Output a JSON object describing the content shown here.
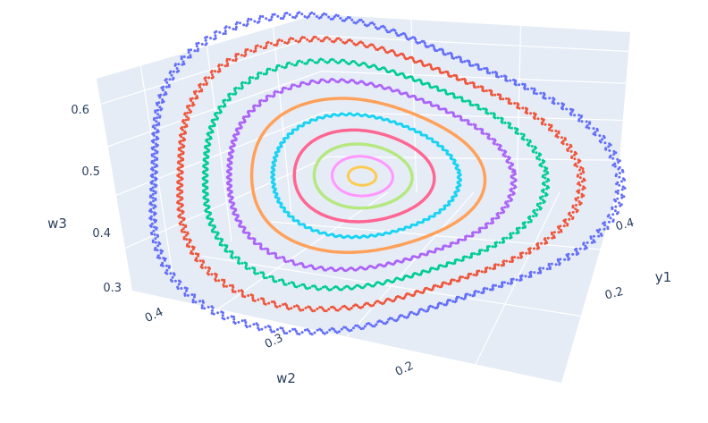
{
  "chart_data": {
    "type": "scatter",
    "scene": "3d",
    "axes": {
      "x": {
        "title": "w2",
        "ticks": [
          "0.4",
          "0.3",
          "0.2"
        ]
      },
      "y": {
        "title": "y1",
        "ticks": [
          "0.4",
          "0.2"
        ]
      },
      "z": {
        "title": "w3",
        "ticks": [
          "0.6",
          "0.5",
          "0.4",
          "0.3"
        ],
        "range": [
          0.28,
          0.64
        ]
      }
    },
    "grid": true,
    "legend": "none",
    "series": [
      {
        "color": "#636efa",
        "level": 1.0,
        "marker": "dots"
      },
      {
        "color": "#ef553b",
        "level": 0.86,
        "marker": "dots"
      },
      {
        "color": "#00cc96",
        "level": 0.73,
        "marker": "dots"
      },
      {
        "color": "#ab63fa",
        "level": 0.61,
        "marker": "dots"
      },
      {
        "color": "#ffa15a",
        "level": 0.5,
        "marker": "line"
      },
      {
        "color": "#19d3f3",
        "level": 0.4,
        "marker": "dots"
      },
      {
        "color": "#ff6692",
        "level": 0.3,
        "marker": "line"
      },
      {
        "color": "#b6e880",
        "level": 0.21,
        "marker": "line"
      },
      {
        "color": "#ff97ff",
        "level": 0.13,
        "marker": "line"
      },
      {
        "color": "#fecb52",
        "level": 0.06,
        "marker": "line"
      }
    ]
  }
}
